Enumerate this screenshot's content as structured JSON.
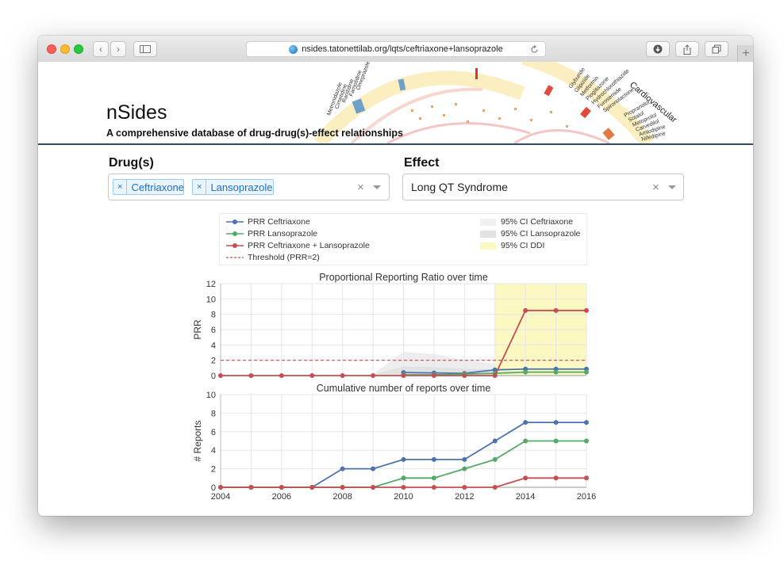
{
  "browser": {
    "url": "nsides.tatonettilab.org/lqts/ceftriaxone+lansoprazole",
    "new_tab_symbol": "+",
    "back_symbol": "‹",
    "forward_symbol": "›"
  },
  "header": {
    "title": "nSides",
    "subtitle": "A comprehensive database of drug-drug(s)-effect relationships",
    "wheel_labels_left": [
      "Metronidazole",
      "Cimetidine",
      "Ranitidine",
      "Famotidine",
      "Omeprazole"
    ],
    "wheel_labels_right": [
      "Glyburide",
      "Glipizide",
      "Metformin",
      "Pioglitazone",
      "Hydrochlorothiazide",
      "Furosemide",
      "Spironolactone",
      "Propranolol",
      "Sotalol",
      "Metoprolol",
      "Carvedilol",
      "Amlodipine",
      "Nifedipine"
    ],
    "wheel_category": "Cardiovascular"
  },
  "form": {
    "drugs_label": "Drug(s)",
    "drugs": [
      "Ceftriaxone",
      "Lansoprazole"
    ],
    "chip_remove_symbol": "×",
    "clear_symbol": "×",
    "effect_label": "Effect",
    "effect_value": "Long QT Syndrome"
  },
  "legend": {
    "lines": [
      {
        "label": "PRR Ceftriaxone",
        "color": "#4c72b0",
        "style": "solid"
      },
      {
        "label": "PRR Lansoprazole",
        "color": "#55a868",
        "style": "solid"
      },
      {
        "label": "PRR Ceftriaxone + Lansoprazole",
        "color": "#c44e52",
        "style": "solid"
      },
      {
        "label": "Threshold (PRR=2)",
        "color": "#c44e52",
        "style": "dashed"
      }
    ],
    "bands": [
      {
        "label": "95% CI Ceftriaxone",
        "color": "#f1f1f1"
      },
      {
        "label": "95% CI Lansoprazole",
        "color": "#e3e3e3"
      },
      {
        "label": "95% CI DDI",
        "color": "#fbf8c2"
      }
    ]
  },
  "chart_data": [
    {
      "type": "line",
      "title": "Proportional Reporting Ratio over time",
      "xlabel": "",
      "ylabel": "PRR",
      "ylim": [
        0,
        12
      ],
      "yticks": [
        0,
        2,
        4,
        6,
        8,
        10,
        12
      ],
      "x": [
        2004,
        2005,
        2006,
        2007,
        2008,
        2009,
        2010,
        2011,
        2012,
        2013,
        2014,
        2015,
        2016
      ],
      "threshold": 2,
      "grid": true,
      "series": [
        {
          "name": "PRR Ceftriaxone",
          "color": "#4c72b0",
          "values": [
            null,
            null,
            null,
            null,
            null,
            null,
            0.4,
            0.35,
            0.3,
            0.75,
            0.85,
            0.85,
            0.85
          ]
        },
        {
          "name": "PRR Lansoprazole",
          "color": "#55a868",
          "values": [
            null,
            null,
            null,
            null,
            null,
            null,
            0.1,
            0.1,
            0.2,
            0.3,
            0.45,
            0.45,
            0.45
          ]
        },
        {
          "name": "PRR Ceftriaxone + Lansoprazole",
          "color": "#c44e52",
          "values": [
            0,
            0,
            0,
            0,
            0,
            0,
            0,
            0,
            0,
            0,
            8.5,
            8.5,
            8.5
          ]
        }
      ],
      "bands": [
        {
          "name": "95% CI Ceftriaxone",
          "color": "#ededed",
          "x": [
            2009,
            2010,
            2011,
            2012,
            2013,
            2014,
            2015,
            2016
          ],
          "lower": [
            0,
            0.1,
            0.1,
            0.1,
            0.2,
            0.3,
            0.3,
            0.3
          ],
          "upper": [
            0.2,
            3.1,
            2.8,
            2.0,
            1.6,
            1.4,
            1.3,
            1.3
          ]
        },
        {
          "name": "95% CI Lansoprazole",
          "color": "#e2e2e2",
          "x": [
            2009,
            2010,
            2011,
            2012,
            2013,
            2014,
            2015,
            2016
          ],
          "lower": [
            0,
            0,
            0,
            0,
            0.05,
            0.1,
            0.1,
            0.1
          ],
          "upper": [
            0.1,
            1.2,
            1.1,
            0.9,
            0.8,
            0.8,
            0.8,
            0.8
          ]
        },
        {
          "name": "95% CI DDI",
          "color": "#fbf8c2",
          "x": [
            2013,
            2016
          ],
          "lower": [
            0,
            0
          ],
          "upper": [
            12,
            12
          ]
        }
      ]
    },
    {
      "type": "line",
      "title": "Cumulative number of reports over time",
      "xlabel": "",
      "ylabel": "# Reports",
      "ylim": [
        0,
        10
      ],
      "yticks": [
        0,
        2,
        4,
        6,
        8,
        10
      ],
      "x": [
        2004,
        2005,
        2006,
        2007,
        2008,
        2009,
        2010,
        2011,
        2012,
        2013,
        2014,
        2015,
        2016
      ],
      "xticks": [
        2004,
        2006,
        2008,
        2010,
        2012,
        2014,
        2016
      ],
      "grid": true,
      "series": [
        {
          "name": "PRR Ceftriaxone",
          "color": "#4c72b0",
          "values": [
            0,
            0,
            0,
            0,
            2,
            2,
            3,
            3,
            3,
            5,
            7,
            7,
            7
          ]
        },
        {
          "name": "PRR Lansoprazole",
          "color": "#55a868",
          "values": [
            0,
            0,
            0,
            0,
            0,
            0,
            1,
            1,
            2,
            3,
            5,
            5,
            5
          ]
        },
        {
          "name": "PRR Ceftriaxone + Lansoprazole",
          "color": "#c44e52",
          "values": [
            0,
            0,
            0,
            0,
            0,
            0,
            0,
            0,
            0,
            0,
            1,
            1,
            1
          ]
        }
      ]
    }
  ]
}
